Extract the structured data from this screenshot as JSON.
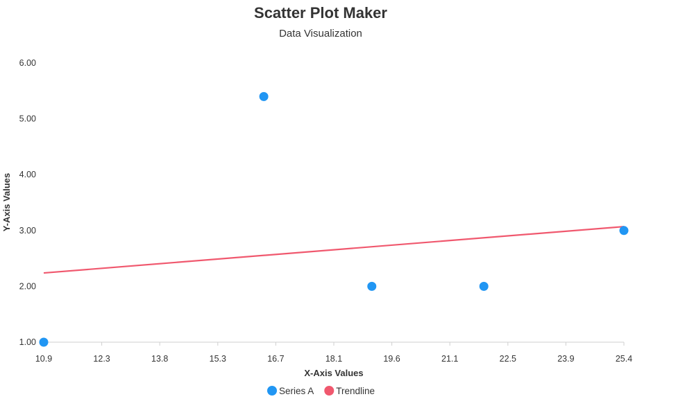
{
  "chart_data": {
    "type": "scatter",
    "title": "Scatter Plot Maker",
    "subtitle": "Data Visualization",
    "xlabel": "X-Axis Values",
    "ylabel": "Y-Axis Values",
    "xlim": [
      10.9,
      25.4
    ],
    "ylim": [
      1.0,
      6.0
    ],
    "x_ticks": [
      "10.9",
      "12.3",
      "13.8",
      "15.3",
      "16.7",
      "18.1",
      "19.6",
      "21.1",
      "22.5",
      "23.9",
      "25.4"
    ],
    "y_ticks": [
      "1.00",
      "2.00",
      "3.00",
      "4.00",
      "5.00",
      "6.00"
    ],
    "grid": false,
    "legend_position": "bottom",
    "series": [
      {
        "name": "Series A",
        "type": "scatter",
        "color": "#2196f3",
        "points": [
          {
            "x": 10.9,
            "y": 1.0
          },
          {
            "x": 16.4,
            "y": 5.4
          },
          {
            "x": 19.1,
            "y": 2.0
          },
          {
            "x": 21.9,
            "y": 2.0
          },
          {
            "x": 25.4,
            "y": 3.0
          }
        ]
      },
      {
        "name": "Trendline",
        "type": "line",
        "color": "#f0586e",
        "points": [
          {
            "x": 10.9,
            "y": 2.24
          },
          {
            "x": 25.4,
            "y": 3.07
          }
        ]
      }
    ]
  }
}
